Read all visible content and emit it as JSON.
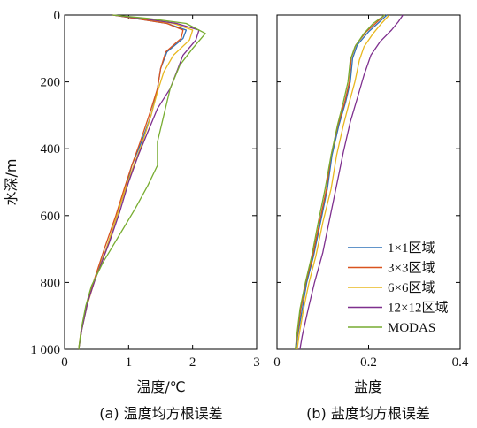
{
  "chart_data": [
    {
      "type": "line",
      "panel_caption": "(a) 温度均方根误差",
      "xlabel": "温度/℃",
      "ylabel": "水深/m",
      "xlim": [
        0,
        3
      ],
      "ylim": [
        1000,
        0
      ],
      "x_ticks": [
        "0",
        "1",
        "2",
        "3"
      ],
      "y_ticks": [
        "0",
        "200",
        "400",
        "600",
        "800",
        "1 000"
      ],
      "y_tick_values": [
        0,
        200,
        400,
        600,
        800,
        1000
      ],
      "series": [
        {
          "name": "1×1区域",
          "color": "#2f72b8",
          "points": [
            [
              0.75,
              0
            ],
            [
              1.1,
              10
            ],
            [
              1.6,
              25
            ],
            [
              1.9,
              45
            ],
            [
              1.85,
              70
            ],
            [
              1.6,
              110
            ],
            [
              1.5,
              160
            ],
            [
              1.45,
              220
            ],
            [
              1.35,
              300
            ],
            [
              1.2,
              380
            ],
            [
              1.05,
              450
            ],
            [
              0.95,
              520
            ],
            [
              0.82,
              600
            ],
            [
              0.65,
              700
            ],
            [
              0.45,
              800
            ],
            [
              0.35,
              870
            ],
            [
              0.27,
              940
            ],
            [
              0.22,
              1000
            ]
          ]
        },
        {
          "name": "3×3区域",
          "color": "#d9531e",
          "points": [
            [
              0.75,
              0
            ],
            [
              1.1,
              10
            ],
            [
              1.6,
              25
            ],
            [
              1.85,
              45
            ],
            [
              1.82,
              70
            ],
            [
              1.58,
              110
            ],
            [
              1.5,
              160
            ],
            [
              1.45,
              220
            ],
            [
              1.32,
              300
            ],
            [
              1.18,
              380
            ],
            [
              1.05,
              450
            ],
            [
              0.93,
              520
            ],
            [
              0.8,
              600
            ],
            [
              0.62,
              700
            ],
            [
              0.45,
              800
            ],
            [
              0.34,
              870
            ],
            [
              0.26,
              940
            ],
            [
              0.22,
              1000
            ]
          ]
        },
        {
          "name": "6×6区域",
          "color": "#e8b820",
          "points": [
            [
              0.75,
              0
            ],
            [
              1.2,
              10
            ],
            [
              1.7,
              25
            ],
            [
              2.0,
              45
            ],
            [
              1.95,
              75
            ],
            [
              1.7,
              120
            ],
            [
              1.55,
              170
            ],
            [
              1.45,
              230
            ],
            [
              1.35,
              300
            ],
            [
              1.22,
              380
            ],
            [
              1.08,
              450
            ],
            [
              0.95,
              520
            ],
            [
              0.82,
              600
            ],
            [
              0.65,
              700
            ],
            [
              0.46,
              800
            ],
            [
              0.35,
              870
            ],
            [
              0.27,
              940
            ],
            [
              0.22,
              1000
            ]
          ]
        },
        {
          "name": "12×12区域",
          "color": "#7e2f8e",
          "points": [
            [
              0.75,
              0
            ],
            [
              1.2,
              10
            ],
            [
              1.75,
              25
            ],
            [
              2.1,
              45
            ],
            [
              2.05,
              75
            ],
            [
              1.85,
              120
            ],
            [
              1.75,
              170
            ],
            [
              1.65,
              220
            ],
            [
              1.45,
              280
            ],
            [
              1.3,
              350
            ],
            [
              1.15,
              420
            ],
            [
              1.0,
              500
            ],
            [
              0.86,
              590
            ],
            [
              0.7,
              680
            ],
            [
              0.48,
              790
            ],
            [
              0.36,
              860
            ],
            [
              0.27,
              940
            ],
            [
              0.22,
              1000
            ]
          ]
        },
        {
          "name": "MODAS",
          "color": "#77ac30",
          "points": [
            [
              0.75,
              0
            ],
            [
              1.3,
              10
            ],
            [
              1.9,
              25
            ],
            [
              2.2,
              55
            ],
            [
              2.0,
              100
            ],
            [
              1.8,
              150
            ],
            [
              1.65,
              220
            ],
            [
              1.55,
              300
            ],
            [
              1.45,
              380
            ],
            [
              1.45,
              450
            ],
            [
              1.3,
              510
            ],
            [
              1.1,
              580
            ],
            [
              0.85,
              660
            ],
            [
              0.6,
              740
            ],
            [
              0.42,
              810
            ],
            [
              0.33,
              870
            ],
            [
              0.26,
              940
            ],
            [
              0.22,
              1000
            ]
          ]
        }
      ]
    },
    {
      "type": "line",
      "panel_caption": "(b) 盐度均方根误差",
      "xlabel": "盐度",
      "xlim": [
        0,
        0.4
      ],
      "ylim": [
        1000,
        0
      ],
      "x_ticks": [
        "0",
        "0.2",
        "0.4"
      ],
      "legend_position": "bottom-right",
      "series": [
        {
          "name": "1×1区域",
          "color": "#2f72b8",
          "points": [
            [
              0.24,
              0
            ],
            [
              0.22,
              25
            ],
            [
              0.2,
              50
            ],
            [
              0.175,
              90
            ],
            [
              0.165,
              130
            ],
            [
              0.16,
              200
            ],
            [
              0.15,
              260
            ],
            [
              0.135,
              330
            ],
            [
              0.12,
              420
            ],
            [
              0.11,
              520
            ],
            [
              0.095,
              620
            ],
            [
              0.08,
              720
            ],
            [
              0.065,
              800
            ],
            [
              0.055,
              880
            ],
            [
              0.045,
              960
            ],
            [
              0.042,
              1000
            ]
          ]
        },
        {
          "name": "3×3区域",
          "color": "#d9531e",
          "points": [
            [
              0.235,
              0
            ],
            [
              0.215,
              25
            ],
            [
              0.195,
              50
            ],
            [
              0.172,
              90
            ],
            [
              0.162,
              130
            ],
            [
              0.158,
              200
            ],
            [
              0.148,
              260
            ],
            [
              0.133,
              330
            ],
            [
              0.118,
              420
            ],
            [
              0.108,
              520
            ],
            [
              0.093,
              620
            ],
            [
              0.078,
              720
            ],
            [
              0.063,
              800
            ],
            [
              0.052,
              880
            ],
            [
              0.044,
              960
            ],
            [
              0.04,
              1000
            ]
          ]
        },
        {
          "name": "6×6区域",
          "color": "#e8b820",
          "points": [
            [
              0.245,
              0
            ],
            [
              0.228,
              25
            ],
            [
              0.21,
              55
            ],
            [
              0.19,
              95
            ],
            [
              0.18,
              135
            ],
            [
              0.17,
              200
            ],
            [
              0.158,
              260
            ],
            [
              0.145,
              330
            ],
            [
              0.13,
              420
            ],
            [
              0.118,
              520
            ],
            [
              0.1,
              620
            ],
            [
              0.085,
              720
            ],
            [
              0.07,
              800
            ],
            [
              0.058,
              880
            ],
            [
              0.048,
              960
            ],
            [
              0.044,
              1000
            ]
          ]
        },
        {
          "name": "12×12区域",
          "color": "#7e2f8e",
          "points": [
            [
              0.275,
              0
            ],
            [
              0.265,
              20
            ],
            [
              0.25,
              45
            ],
            [
              0.225,
              80
            ],
            [
              0.205,
              120
            ],
            [
              0.19,
              180
            ],
            [
              0.175,
              250
            ],
            [
              0.16,
              320
            ],
            [
              0.145,
              410
            ],
            [
              0.13,
              510
            ],
            [
              0.115,
              610
            ],
            [
              0.1,
              710
            ],
            [
              0.082,
              800
            ],
            [
              0.068,
              880
            ],
            [
              0.055,
              960
            ],
            [
              0.05,
              1000
            ]
          ]
        },
        {
          "name": "MODAS",
          "color": "#77ac30",
          "points": [
            [
              0.235,
              0
            ],
            [
              0.21,
              25
            ],
            [
              0.19,
              55
            ],
            [
              0.17,
              95
            ],
            [
              0.16,
              135
            ],
            [
              0.155,
              200
            ],
            [
              0.145,
              260
            ],
            [
              0.132,
              330
            ],
            [
              0.118,
              420
            ],
            [
              0.105,
              520
            ],
            [
              0.09,
              620
            ],
            [
              0.076,
              720
            ],
            [
              0.062,
              800
            ],
            [
              0.05,
              880
            ],
            [
              0.043,
              960
            ],
            [
              0.04,
              1000
            ]
          ]
        }
      ]
    }
  ]
}
